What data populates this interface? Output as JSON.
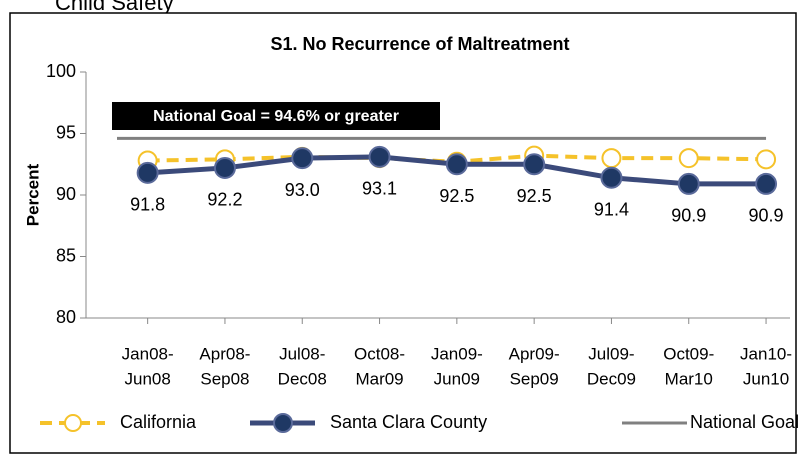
{
  "header": {
    "title": "Child Safety"
  },
  "chart_data": {
    "type": "line",
    "title": "S1. No Recurrence of Maltreatment",
    "y_label": "Percent",
    "annotation": "National Goal = 94.6% or greater",
    "categories": [
      [
        "Jan08-",
        "Jun08"
      ],
      [
        "Apr08-",
        "Sep08"
      ],
      [
        "Jul08-",
        "Dec08"
      ],
      [
        "Oct08-",
        "Mar09"
      ],
      [
        "Jan09-",
        "Jun09"
      ],
      [
        "Apr09-",
        "Sep09"
      ],
      [
        "Jul09-",
        "Dec09"
      ],
      [
        "Oct09-",
        "Mar10"
      ],
      [
        "Jan10-",
        "Jun10"
      ]
    ],
    "series": [
      {
        "name": "California",
        "color": "#f5c22a",
        "values": [
          92.8,
          92.9,
          93.1,
          93.0,
          92.7,
          93.2,
          93.0,
          93.0,
          92.9
        ]
      },
      {
        "name": "Santa Clara County",
        "color": "#3b4a7a",
        "values": [
          91.8,
          92.2,
          93.0,
          93.1,
          92.5,
          92.5,
          91.4,
          90.9,
          90.9
        ],
        "value_labels": [
          "91.8",
          "92.2",
          "93.0",
          "93.1",
          "92.5",
          "92.5",
          "91.4",
          "90.9",
          "90.9"
        ]
      },
      {
        "name": "National Goal",
        "color": "#808080",
        "values": [
          94.6,
          94.6,
          94.6,
          94.6,
          94.6,
          94.6,
          94.6,
          94.6,
          94.6
        ]
      }
    ],
    "ylim": [
      80,
      100
    ],
    "yticks": [
      80,
      85,
      90,
      95,
      100
    ],
    "grid": false,
    "legend": "bottom"
  }
}
